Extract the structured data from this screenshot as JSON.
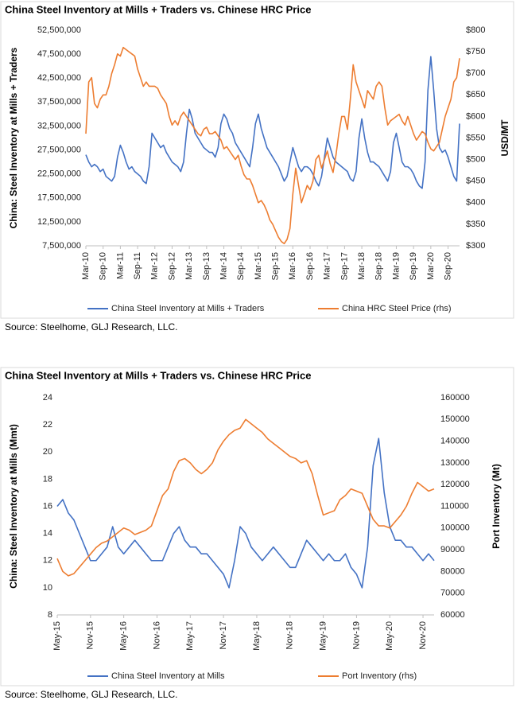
{
  "chart_data": [
    {
      "type": "line",
      "title": "China Steel Inventory at Mills + Traders vs. Chinese HRC Price",
      "ylabel": "China: Steel Inventory at Mills + Traders",
      "y2label": "USD/MT",
      "source": "Source: Steelhome, GLJ Research, LLC.",
      "categories": [
        "Mar-10",
        null,
        null,
        null,
        null,
        null,
        "Sep-10",
        null,
        null,
        null,
        null,
        null,
        "Mar-11",
        null,
        null,
        null,
        null,
        null,
        "Sep-11",
        null,
        null,
        null,
        null,
        null,
        "Mar-12",
        null,
        null,
        null,
        null,
        null,
        "Sep-12",
        null,
        null,
        null,
        null,
        null,
        "Mar-13",
        null,
        null,
        null,
        null,
        null,
        "Sep-13",
        null,
        null,
        null,
        null,
        null,
        "Mar-14",
        null,
        null,
        null,
        null,
        null,
        "Sep-14",
        null,
        null,
        null,
        null,
        null,
        "Mar-15",
        null,
        null,
        null,
        null,
        null,
        "Sep-15",
        null,
        null,
        null,
        null,
        null,
        "Mar-16",
        null,
        null,
        null,
        null,
        null,
        "Sep-16",
        null,
        null,
        null,
        null,
        null,
        "Mar-17",
        null,
        null,
        null,
        null,
        null,
        "Sep-17",
        null,
        null,
        null,
        null,
        null,
        "Mar-18",
        null,
        null,
        null,
        null,
        null,
        "Sep-18",
        null,
        null,
        null,
        null,
        null,
        "Mar-19",
        null,
        null,
        null,
        null,
        null,
        "Sep-19",
        null,
        null,
        null,
        null,
        null,
        "Mar-20",
        null,
        null,
        null,
        null,
        null,
        "Sep-20",
        null,
        null,
        null,
        null
      ],
      "ylim": [
        7500000,
        52500000
      ],
      "yticks": [
        {
          "value": 7500000,
          "label": "7,500,000"
        },
        {
          "value": 12500000,
          "label": "12,500,000"
        },
        {
          "value": 17500000,
          "label": "17,500,000"
        },
        {
          "value": 22500000,
          "label": "22,500,000"
        },
        {
          "value": 27500000,
          "label": "27,500,000"
        },
        {
          "value": 32500000,
          "label": "32,500,000"
        },
        {
          "value": 37500000,
          "label": "37,500,000"
        },
        {
          "value": 42500000,
          "label": "42,500,000"
        },
        {
          "value": 47500000,
          "label": "47,500,000"
        },
        {
          "value": 52500000,
          "label": "52,500,000"
        }
      ],
      "y2lim": [
        300,
        800
      ],
      "y2ticks": [
        {
          "value": 300,
          "label": "$300"
        },
        {
          "value": 350,
          "label": "$350"
        },
        {
          "value": 400,
          "label": "$400"
        },
        {
          "value": 450,
          "label": "$450"
        },
        {
          "value": 500,
          "label": "$500"
        },
        {
          "value": 550,
          "label": "$550"
        },
        {
          "value": 600,
          "label": "$600"
        },
        {
          "value": 650,
          "label": "$650"
        },
        {
          "value": 700,
          "label": "$700"
        },
        {
          "value": 750,
          "label": "$750"
        },
        {
          "value": 800,
          "label": "$800"
        }
      ],
      "legend": "bottom",
      "series": [
        {
          "name": "China Steel Inventory at Mills + Traders",
          "color": "#4472c4",
          "values": [
            26500000,
            25000000,
            24000000,
            24500000,
            24000000,
            23000000,
            23500000,
            22000000,
            21500000,
            21000000,
            22000000,
            26000000,
            28500000,
            27000000,
            25000000,
            23500000,
            24000000,
            23000000,
            22500000,
            22000000,
            21000000,
            20500000,
            24000000,
            31000000,
            30000000,
            29000000,
            28000000,
            28500000,
            27000000,
            26000000,
            25000000,
            24500000,
            24000000,
            23000000,
            25000000,
            31000000,
            36000000,
            34000000,
            31000000,
            30000000,
            29000000,
            28000000,
            27500000,
            27000000,
            27000000,
            26000000,
            28000000,
            33000000,
            35000000,
            34000000,
            32000000,
            31000000,
            29000000,
            28000000,
            27000000,
            26000000,
            25000000,
            24000000,
            28000000,
            33000000,
            35000000,
            32000000,
            30000000,
            28000000,
            27000000,
            26000000,
            25000000,
            24000000,
            22500000,
            21000000,
            22000000,
            25000000,
            28000000,
            26000000,
            24000000,
            23000000,
            24000000,
            24000000,
            23500000,
            22500000,
            21000000,
            20000000,
            22000000,
            26000000,
            30000000,
            28000000,
            26000000,
            25000000,
            24500000,
            24000000,
            23500000,
            23000000,
            21500000,
            21000000,
            23000000,
            30000000,
            34000000,
            30000000,
            27000000,
            25000000,
            25000000,
            24500000,
            24000000,
            23000000,
            22000000,
            21000000,
            23000000,
            29000000,
            31000000,
            28000000,
            25000000,
            24000000,
            24000000,
            23500000,
            22500000,
            21000000,
            20000000,
            19500000,
            25000000,
            40000000,
            47000000,
            40000000,
            32000000,
            28000000,
            27000000,
            27500000,
            26000000,
            24000000,
            22000000,
            21000000,
            33000000
          ]
        },
        {
          "name": "China HRC Steel Price (rhs)",
          "color": "#ed7d31",
          "axis": "y2",
          "values": [
            560,
            680,
            690,
            630,
            620,
            640,
            650,
            650,
            670,
            700,
            720,
            745,
            740,
            760,
            755,
            750,
            745,
            740,
            710,
            690,
            670,
            680,
            670,
            670,
            670,
            665,
            650,
            640,
            630,
            600,
            580,
            590,
            580,
            600,
            610,
            600,
            590,
            580,
            570,
            560,
            555,
            570,
            575,
            560,
            560,
            565,
            555,
            545,
            525,
            530,
            520,
            510,
            500,
            510,
            485,
            465,
            455,
            455,
            440,
            420,
            400,
            405,
            395,
            380,
            360,
            350,
            335,
            320,
            310,
            305,
            315,
            340,
            420,
            480,
            440,
            400,
            420,
            440,
            430,
            450,
            500,
            510,
            480,
            500,
            520,
            490,
            470,
            510,
            560,
            600,
            600,
            570,
            640,
            720,
            680,
            660,
            640,
            620,
            660,
            650,
            640,
            670,
            680,
            670,
            620,
            580,
            590,
            595,
            600,
            605,
            590,
            580,
            600,
            580,
            560,
            545,
            555,
            565,
            560,
            540,
            525,
            520,
            530,
            540,
            570,
            600,
            620,
            640,
            680,
            690,
            735
          ]
        }
      ]
    },
    {
      "type": "line",
      "title": "China Steel Inventory at Mills + Traders vs. Chinese HRC Price",
      "ylabel": "China: Steel Inventory at Mills (Mmt)",
      "y2label": "Port Inventory (Mt)",
      "source": "Source: Steelhome, GLJ Research, LLC.",
      "categories": [
        "May-15",
        null,
        null,
        null,
        null,
        null,
        "Nov-15",
        null,
        null,
        null,
        null,
        null,
        "May-16",
        null,
        null,
        null,
        null,
        null,
        "Nov-16",
        null,
        null,
        null,
        null,
        null,
        "May-17",
        null,
        null,
        null,
        null,
        null,
        "Nov-17",
        null,
        null,
        null,
        null,
        null,
        "May-18",
        null,
        null,
        null,
        null,
        null,
        "Nov-18",
        null,
        null,
        null,
        null,
        null,
        "May-19",
        null,
        null,
        null,
        null,
        null,
        "Nov-19",
        null,
        null,
        null,
        null,
        null,
        "May-20",
        null,
        null,
        null,
        null,
        null,
        "Nov-20",
        null,
        null
      ],
      "ylim": [
        8,
        24
      ],
      "yticks": [
        8,
        10,
        12,
        14,
        16,
        18,
        20,
        22,
        24
      ],
      "y2lim": [
        60000,
        160000
      ],
      "y2ticks": [
        60000,
        70000,
        80000,
        90000,
        100000,
        110000,
        120000,
        130000,
        140000,
        150000,
        160000
      ],
      "legend": "bottom",
      "series": [
        {
          "name": "China Steel Inventory at Mills",
          "color": "#4472c4",
          "values": [
            16,
            16.5,
            15.5,
            15,
            14,
            13,
            12,
            12,
            12.5,
            13,
            14.5,
            13,
            12.5,
            13,
            13.5,
            13,
            12.5,
            12,
            12,
            12,
            13,
            14,
            14.5,
            13.5,
            13,
            13,
            12.5,
            12.5,
            12,
            11.5,
            11,
            10,
            12,
            14.5,
            14,
            13,
            12.5,
            12,
            12.5,
            13,
            12.5,
            12,
            11.5,
            11.5,
            12.5,
            13.5,
            13,
            12.5,
            12,
            12.5,
            12,
            12,
            12.5,
            11.5,
            11,
            10,
            13,
            19,
            21,
            17,
            14.5,
            13.5,
            13.5,
            13,
            13,
            12.5,
            12,
            12.5,
            12
          ]
        },
        {
          "name": "Port Inventory (rhs)",
          "color": "#ed7d31",
          "axis": "y2",
          "values": [
            86000,
            80000,
            78000,
            79000,
            82000,
            85000,
            88000,
            91000,
            93000,
            94000,
            96000,
            98000,
            100000,
            99000,
            97000,
            98000,
            99000,
            101000,
            108000,
            115000,
            118000,
            126000,
            131000,
            132000,
            130000,
            127000,
            125000,
            127000,
            130000,
            136000,
            140000,
            143000,
            145000,
            146000,
            150000,
            148000,
            146000,
            144000,
            141000,
            139000,
            137000,
            135000,
            133000,
            132000,
            130000,
            131000,
            125000,
            115000,
            106000,
            107000,
            108000,
            113000,
            115000,
            118000,
            117000,
            116000,
            110000,
            104000,
            101000,
            101000,
            100000,
            103000,
            106000,
            110000,
            116000,
            121000,
            119000,
            117000,
            118000
          ]
        }
      ]
    }
  ]
}
